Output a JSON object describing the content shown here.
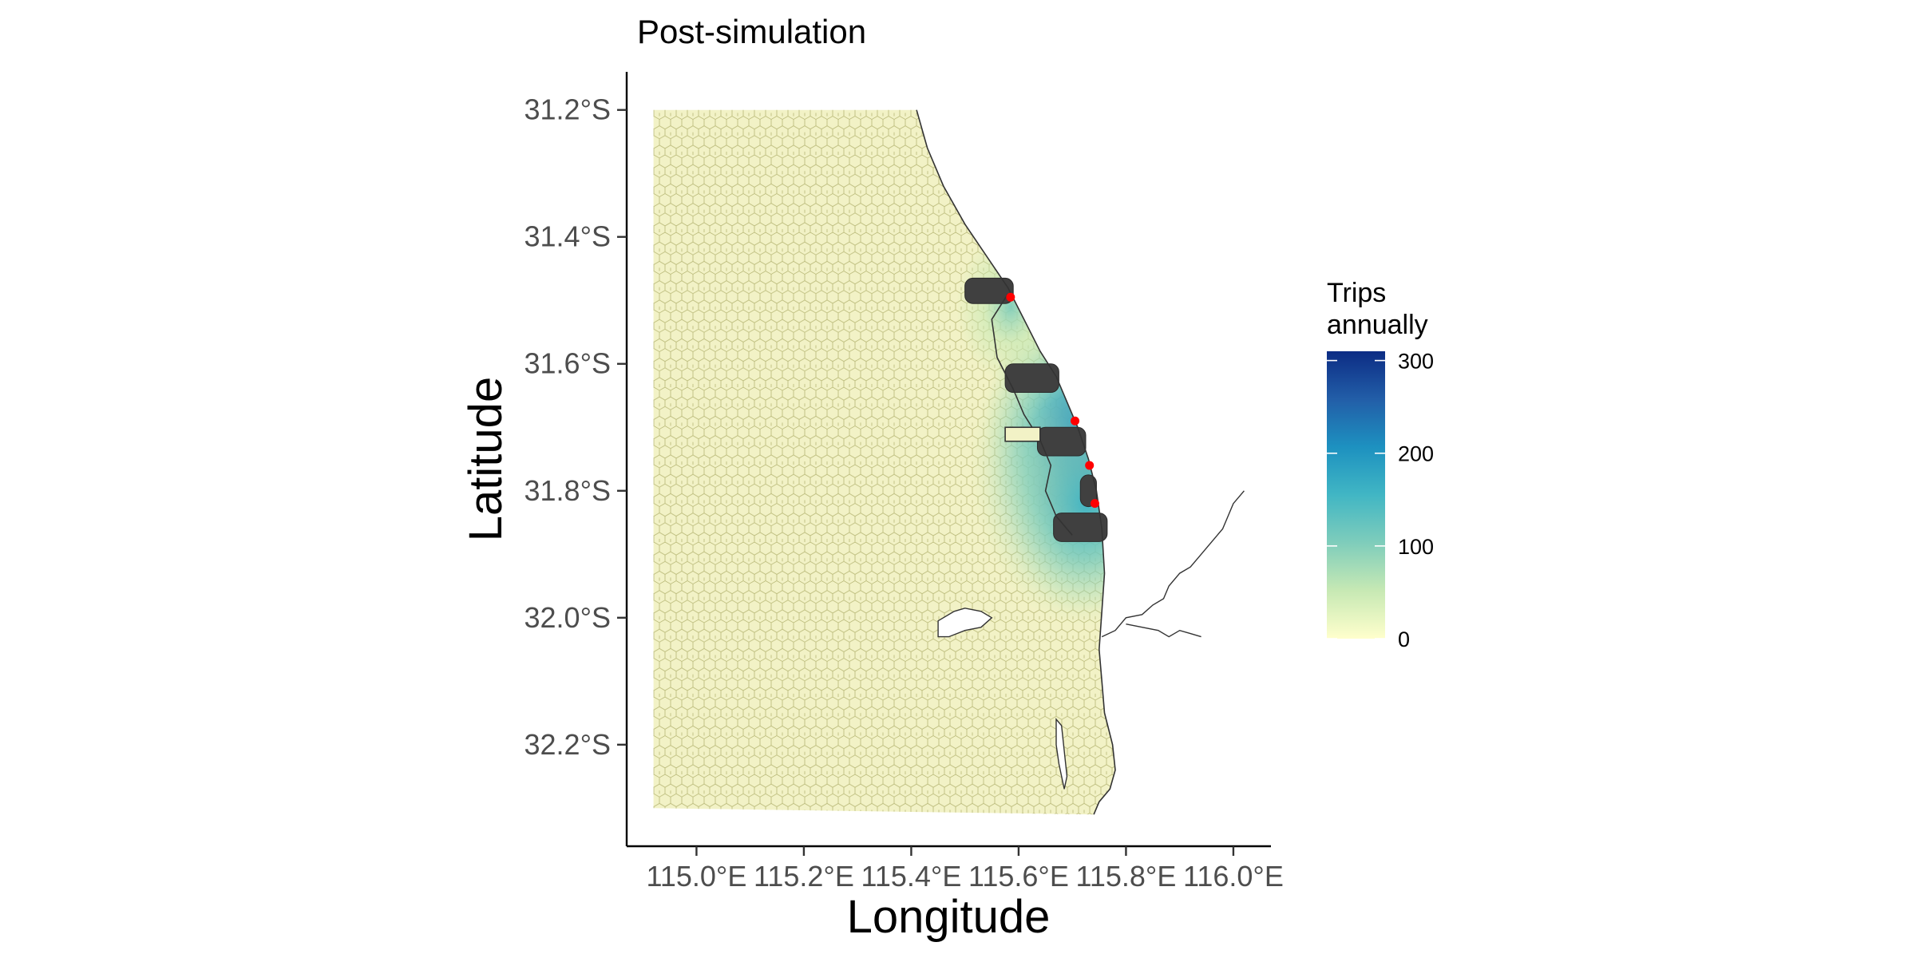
{
  "title": "Post-simulation",
  "x_axis": {
    "label": "Longitude",
    "ticks": [
      {
        "value": 115.0,
        "label": "115.0°E"
      },
      {
        "value": 115.2,
        "label": "115.2°E"
      },
      {
        "value": 115.4,
        "label": "115.4°E"
      },
      {
        "value": 115.6,
        "label": "115.6°E"
      },
      {
        "value": 115.8,
        "label": "115.8°E"
      },
      {
        "value": 116.0,
        "label": "116.0°E"
      }
    ],
    "range": [
      114.87,
      116.07
    ]
  },
  "y_axis": {
    "label": "Latitude",
    "ticks": [
      {
        "value": -31.2,
        "label": "31.2°S"
      },
      {
        "value": -31.4,
        "label": "31.4°S"
      },
      {
        "value": -31.6,
        "label": "31.6°S"
      },
      {
        "value": -31.8,
        "label": "31.8°S"
      },
      {
        "value": -32.0,
        "label": "32.0°S"
      },
      {
        "value": -32.2,
        "label": "32.2°S"
      }
    ],
    "range": [
      -32.36,
      -31.14
    ]
  },
  "legend": {
    "title_lines": [
      "Trips",
      "annually"
    ],
    "ticks": [
      {
        "value": 0,
        "label": "0"
      },
      {
        "value": 100,
        "label": "100"
      },
      {
        "value": 200,
        "label": "200"
      },
      {
        "value": 300,
        "label": "300"
      }
    ],
    "range": [
      0,
      310
    ],
    "colors": [
      "#ffffcc",
      "#c7e9b4",
      "#7fcdbb",
      "#41b6c4",
      "#1d91c0",
      "#225ea8",
      "#0c2c84"
    ],
    "placement": "right"
  },
  "colors": {
    "background_hex": "#f2f2c6",
    "hex_stroke": "#b8b877",
    "excluded_hex": "#404040",
    "boat_ramp": "#ff0000",
    "coastline": "#333333"
  },
  "map_data": {
    "grid_extent": {
      "lon": [
        114.92,
        115.75
      ],
      "lat": [
        -32.3,
        -31.2
      ]
    },
    "boat_ramps": [
      {
        "lon": 115.585,
        "lat": -31.495
      },
      {
        "lon": 115.705,
        "lat": -31.69
      },
      {
        "lon": 115.732,
        "lat": -31.76
      },
      {
        "lon": 115.742,
        "lat": -31.82
      }
    ],
    "excluded_zones": [
      {
        "lon": [
          115.5,
          115.59
        ],
        "lat": [
          -31.505,
          -31.465
        ]
      },
      {
        "lon": [
          115.575,
          115.675
        ],
        "lat": [
          -31.645,
          -31.6
        ]
      },
      {
        "lon": [
          115.635,
          115.725
        ],
        "lat": [
          -31.745,
          -31.7
        ]
      },
      {
        "lon": [
          115.715,
          115.745
        ],
        "lat": [
          -31.825,
          -31.775
        ]
      },
      {
        "lon": [
          115.665,
          115.765
        ],
        "lat": [
          -31.88,
          -31.835
        ]
      }
    ],
    "hotspot_trips": [
      {
        "lon": 115.725,
        "lat": -31.76,
        "trips": 300
      },
      {
        "lon": 115.705,
        "lat": -31.7,
        "trips": 210
      },
      {
        "lon": 115.725,
        "lat": -31.82,
        "trips": 170
      },
      {
        "lon": 115.585,
        "lat": -31.51,
        "trips": 80
      }
    ]
  }
}
